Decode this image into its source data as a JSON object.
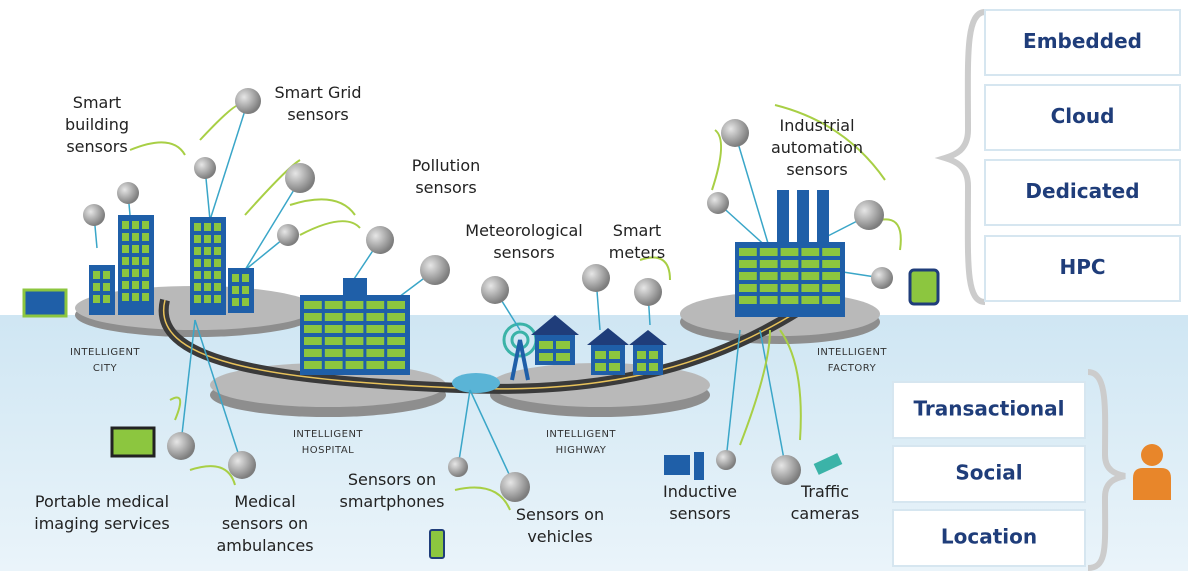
{
  "labels": [
    {
      "lines": [
        "Smart",
        "building",
        "sensors"
      ]
    },
    {
      "lines": [
        "Smart Grid",
        "sensors"
      ]
    },
    {
      "lines": [
        "Pollution",
        "sensors"
      ]
    },
    {
      "lines": [
        "Meteorological",
        "sensors"
      ]
    },
    {
      "lines": [
        "Smart",
        "meters"
      ]
    },
    {
      "lines": [
        "Industrial",
        "automation",
        "sensors"
      ]
    },
    {
      "lines": [
        "Portable medical",
        "imaging services"
      ]
    },
    {
      "lines": [
        "Medical",
        "sensors on",
        "ambulances"
      ]
    },
    {
      "lines": [
        "Sensors on",
        "smartphones"
      ]
    },
    {
      "lines": [
        "Sensors on",
        "vehicles"
      ]
    },
    {
      "lines": [
        "Inductive",
        "sensors"
      ]
    },
    {
      "lines": [
        "Traffic",
        "cameras"
      ]
    }
  ],
  "platforms": [
    {
      "lines": [
        "INTELLIGENT",
        "CITY"
      ]
    },
    {
      "lines": [
        "INTELLIGENT",
        "HOSPITAL"
      ]
    },
    {
      "lines": [
        "INTELLIGENT",
        "HIGHWAY"
      ]
    },
    {
      "lines": [
        "INTELLIGENT",
        "FACTORY"
      ]
    }
  ],
  "right_panel": {
    "infrastructure": [
      "Embedded",
      "Cloud",
      "Dedicated",
      "HPC"
    ],
    "users": [
      "Transactional",
      "Social",
      "Location"
    ]
  }
}
